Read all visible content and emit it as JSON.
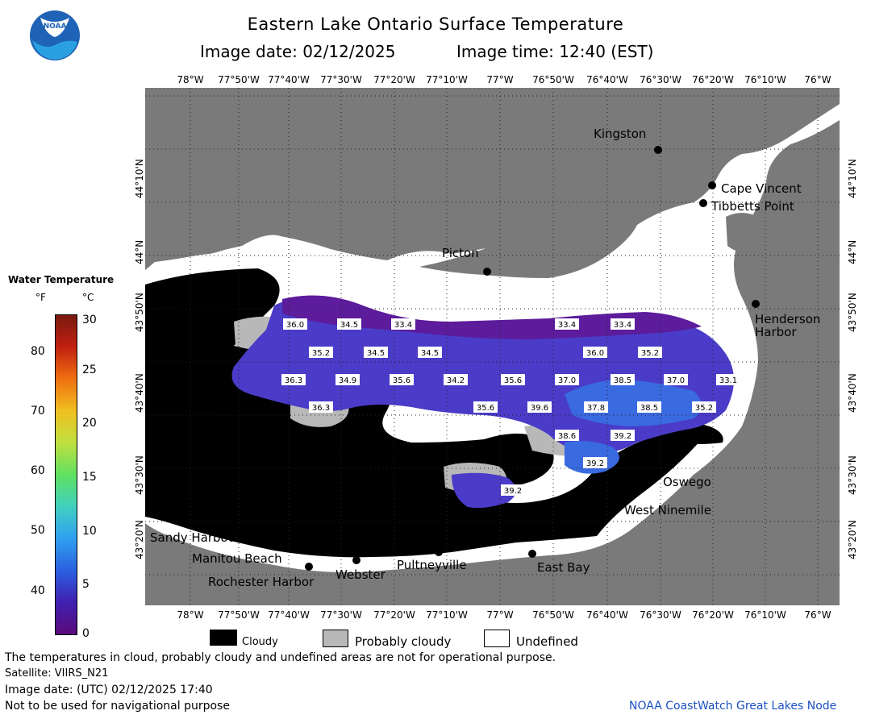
{
  "title": "Eastern Lake Ontario Surface Temperature",
  "subtitle": {
    "date": "Image date: 02/12/2025",
    "time": "Image time: 12:40 (EST)"
  },
  "logo_text": "NOAA",
  "longitude_labels": [
    "78°W",
    "77°50'W",
    "77°40'W",
    "77°30'W",
    "77°20'W",
    "77°10'W",
    "77°W",
    "76°50'W",
    "76°40'W",
    "76°30'W",
    "76°20'W",
    "76°10'W",
    "76°W"
  ],
  "latitude_labels": [
    "44°10'N",
    "44°N",
    "43°50'N",
    "43°40'N",
    "43°30'N",
    "43°20'N"
  ],
  "place_labels": [
    {
      "name": "Kingston"
    },
    {
      "name": "Cape Vincent"
    },
    {
      "name": "Tibbetts Point"
    },
    {
      "name": "Picton"
    },
    {
      "name": "Henderson Harbor"
    },
    {
      "name": "Oswego"
    },
    {
      "name": "West Ninemile"
    },
    {
      "name": "Sandy Harbour"
    },
    {
      "name": "Manitou Beach"
    },
    {
      "name": "Rochester Harbor"
    },
    {
      "name": "Webster"
    },
    {
      "name": "Pultneyville"
    },
    {
      "name": "East Bay"
    }
  ],
  "temperature_labels": [
    "36.0",
    "34.5",
    "33.4",
    "33.4",
    "33.4",
    "35.2",
    "34.5",
    "34.5",
    "36.0",
    "35.2",
    "36.3",
    "34.9",
    "35.6",
    "34.2",
    "35.6",
    "37.0",
    "38.5",
    "37.0",
    "33.1",
    "36.3",
    "35.6",
    "39.6",
    "37.8",
    "38.5",
    "35.2",
    "38.6",
    "39.2",
    "39.2",
    "39.2"
  ],
  "colorbar": {
    "title": "Water Temperature",
    "unit_f": "°F",
    "unit_c": "°C",
    "f_ticks": [
      "80",
      "70",
      "60",
      "50",
      "40"
    ],
    "c_ticks": [
      "30",
      "25",
      "20",
      "15",
      "10",
      "5",
      "0"
    ],
    "colors": [
      "#5a0a7a",
      "#4020b0",
      "#2a60e0",
      "#30a0f0",
      "#40d0c0",
      "#60e060",
      "#c0e040",
      "#f0c020",
      "#f07010",
      "#c02010",
      "#7a1a10"
    ]
  },
  "legend": {
    "cloudy": "Cloudy",
    "probably_cloudy": "Probably cloudy",
    "undefined": "Undefined"
  },
  "footer": {
    "disclaimer": "The temperatures in cloud, probably cloudy and undefined areas are not for operational purpose.",
    "satellite": "Satellite: VIIRS_N21",
    "utc_date": "Image date: (UTC) 02/12/2025  17:40",
    "navigation": "Not to be used for navigational purpose",
    "credit": "NOAA CoastWatch Great Lakes Node"
  },
  "colors": {
    "land": "#7a7a7a",
    "cloud": "#000000",
    "probably_cloud": "#b8b8b8",
    "undefined": "#ffffff",
    "water_cold": "#5c1c9c",
    "water_mid": "#4a3cc8",
    "water_warm": "#3a6ae0",
    "credit": "#1a50c0"
  }
}
